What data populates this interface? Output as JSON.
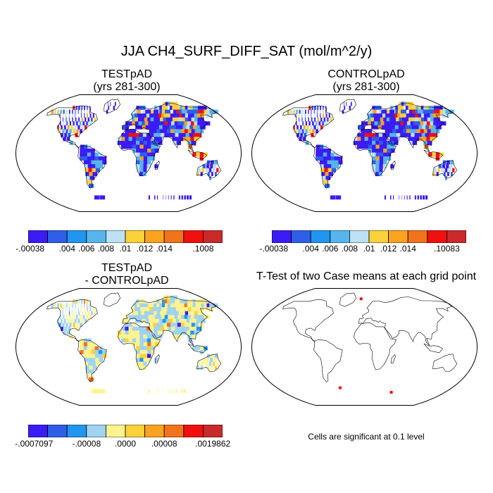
{
  "title": "JJA CH4_SURF_DIFF_SAT (mol/m^2/y)",
  "panels": {
    "test": {
      "title_line1": "TESTpAD",
      "title_line2": "(yrs 281-300)"
    },
    "control": {
      "title_line1": "CONTROLpAD",
      "title_line2": "(yrs 281-300)"
    },
    "diff": {
      "title_line1": "TESTpAD",
      "title_line2": "- CONTROLpAD"
    },
    "ttest": {
      "title": "T-Test of two Case means at each grid point",
      "note": "Cells are significant at 0.1 level"
    }
  },
  "colorbars": {
    "test": {
      "colors": [
        "#3c1cf5",
        "#2f5ee8",
        "#2196f0",
        "#55b5ec",
        "#bde0f5",
        "#fcd23a",
        "#fba31f",
        "#f2731c",
        "#f01010",
        "#c92a2a"
      ],
      "labels": [
        "-.00038",
        ".004",
        ".006",
        ".008",
        ".01",
        ".012",
        ".014",
        ".1008"
      ]
    },
    "control": {
      "colors": [
        "#3c1cf5",
        "#2f5ee8",
        "#2196f0",
        "#55b5ec",
        "#bde0f5",
        "#fcd23a",
        "#fba31f",
        "#f2731c",
        "#f01010",
        "#c92a2a"
      ],
      "labels": [
        "-.00038",
        ".004",
        ".006",
        ".008",
        ".01",
        ".012",
        ".014",
        ".10083"
      ]
    },
    "diff": {
      "colors": [
        "#3c1cf5",
        "#2f5ee8",
        "#2196f0",
        "#9fd3f2",
        "#fff38f",
        "#fcd23a",
        "#fba31f",
        "#f2731c",
        "#f01010",
        "#c92a2a"
      ],
      "labels": [
        "-.0007097",
        "-.00008",
        ".0000",
        ".00008",
        ".0019862"
      ]
    }
  },
  "map_colors": {
    "land_outline": "#000000",
    "frame": "#000000"
  }
}
